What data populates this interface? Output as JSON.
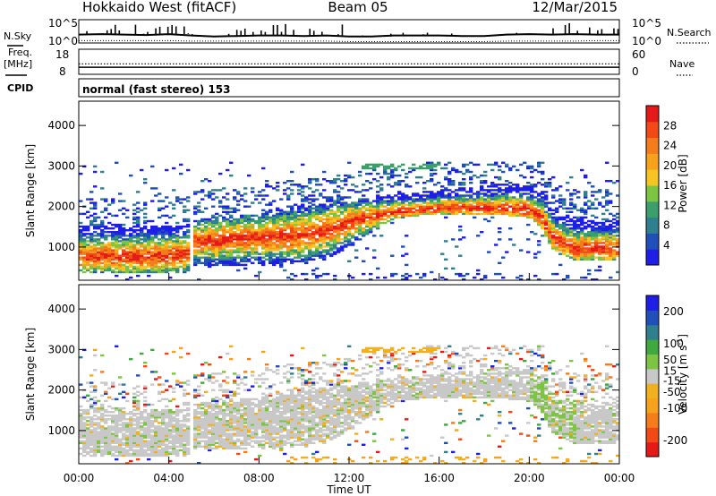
{
  "header": {
    "station": "Hokkaido West (fitACF)",
    "beam": "Beam 05",
    "date": "12/Mar/2015"
  },
  "strips": {
    "nsky_label": "N.Sky",
    "nsearch_label": "N.Search",
    "noise_ticks": [
      "10^5",
      "10^0"
    ],
    "freq_label": "Freq.",
    "freq_unit": "[MHz]",
    "freq_ticks": [
      "18",
      "8"
    ],
    "nave_label": "Nave",
    "nave_ticks": [
      "60",
      "0"
    ],
    "cpid_label": "CPID",
    "cpid_text": "normal (fast stereo) 153"
  },
  "time_axis": {
    "label": "Time UT",
    "ticks": [
      "00:00",
      "04:00",
      "08:00",
      "12:00",
      "16:00",
      "20:00",
      "00:00"
    ],
    "range_hours": [
      0,
      24
    ]
  },
  "colors": {
    "power": [
      "#1e1ee6",
      "#1f4fb8",
      "#2f7f8f",
      "#3a9f6a",
      "#7dc442",
      "#f5c623",
      "#f7a21c",
      "#f47c1b",
      "#f24a17",
      "#e61919"
    ],
    "velocity": [
      "#e61919",
      "#f24a17",
      "#f47c1b",
      "#f7a21c",
      "#f0b020",
      "#c8c8c8",
      "#7dc442",
      "#3fa83f",
      "#2f7f8f",
      "#1f4fb8",
      "#1e1ee6"
    ]
  },
  "chart_data": [
    {
      "type": "heatmap",
      "name": "power",
      "ylabel": "Slant Range [km]",
      "ylim": [
        180,
        4600
      ],
      "yticks": [
        1000,
        2000,
        3000,
        4000
      ],
      "colorbar_label": "Power [dB]",
      "colorbar_ticks": [
        4,
        8,
        12,
        16,
        20,
        24,
        28
      ],
      "colorbar_range": [
        0,
        32
      ],
      "echo_band": {
        "t": [
          0,
          1,
          2,
          3,
          4,
          4.7,
          5,
          6,
          7,
          8,
          9,
          10,
          11,
          12,
          13,
          14,
          15,
          16,
          17,
          18,
          19,
          20,
          20.5,
          21,
          22,
          23,
          24
        ],
        "core": [
          750,
          760,
          740,
          760,
          780,
          820,
          1100,
          1150,
          1200,
          1230,
          1250,
          1280,
          1400,
          1600,
          1750,
          1850,
          1900,
          1950,
          1960,
          1950,
          1940,
          1900,
          1700,
          1200,
          950,
          950,
          950
        ],
        "low": [
          350,
          350,
          350,
          350,
          350,
          350,
          500,
          500,
          500,
          520,
          540,
          560,
          700,
          1000,
          1400,
          1700,
          1750,
          1800,
          1800,
          1800,
          1750,
          1700,
          1400,
          900,
          650,
          650,
          650
        ],
        "high": [
          1500,
          1500,
          1480,
          1500,
          1500,
          1500,
          1650,
          1700,
          1750,
          1800,
          1900,
          2000,
          2050,
          2100,
          2200,
          2300,
          2350,
          2400,
          2450,
          2500,
          2550,
          2500,
          2400,
          1900,
          1700,
          1650,
          1650
        ]
      },
      "gaps": [
        [
          4.8,
          5.0
        ]
      ],
      "outer": {
        "t0": 0,
        "t1": 24,
        "max_range": 3100
      }
    },
    {
      "type": "heatmap",
      "name": "velocity",
      "ylabel": "Slant Range [km]",
      "ylim": [
        180,
        4600
      ],
      "yticks": [
        1000,
        2000,
        3000,
        4000
      ],
      "colorbar_label": "Velocity [m s^-1]",
      "colorbar_ticks": [
        200,
        100,
        50,
        15,
        -15,
        -50,
        -100,
        -200
      ],
      "colorbar_range": [
        -250,
        250
      ],
      "dominant": "-15 to 15 (grey)",
      "secondary": "-50 to -15 (orange) near 3000 km 13:00-16:00"
    }
  ],
  "noise_series": {
    "ylim": [
      0,
      5
    ],
    "sky_level": [
      1.8,
      1.9,
      1.8,
      1.7,
      1.9,
      1.6,
      1.4,
      1.5,
      1.6,
      1.6,
      1.5,
      1.6,
      1.4,
      1.4,
      1.6,
      1.6,
      1.6,
      1.5,
      1.5,
      1.8,
      1.9,
      1.8,
      1.9,
      1.8,
      1.8
    ],
    "search_level": [
      0.5,
      0.5,
      0.5,
      0.5,
      0.5,
      0.4,
      0.4,
      0.4,
      0.4,
      0.4,
      0.4,
      0.4,
      0.3,
      0.3,
      0.3,
      0.3,
      0.3,
      0.3,
      0.3,
      0.4,
      0.4,
      0.4,
      0.4,
      0.5,
      0.5
    ]
  },
  "freq_series": {
    "ylim": [
      8,
      18
    ],
    "value_mhz": 10.8
  },
  "nave_series": {
    "ylim": [
      0,
      60
    ],
    "value": 25
  }
}
